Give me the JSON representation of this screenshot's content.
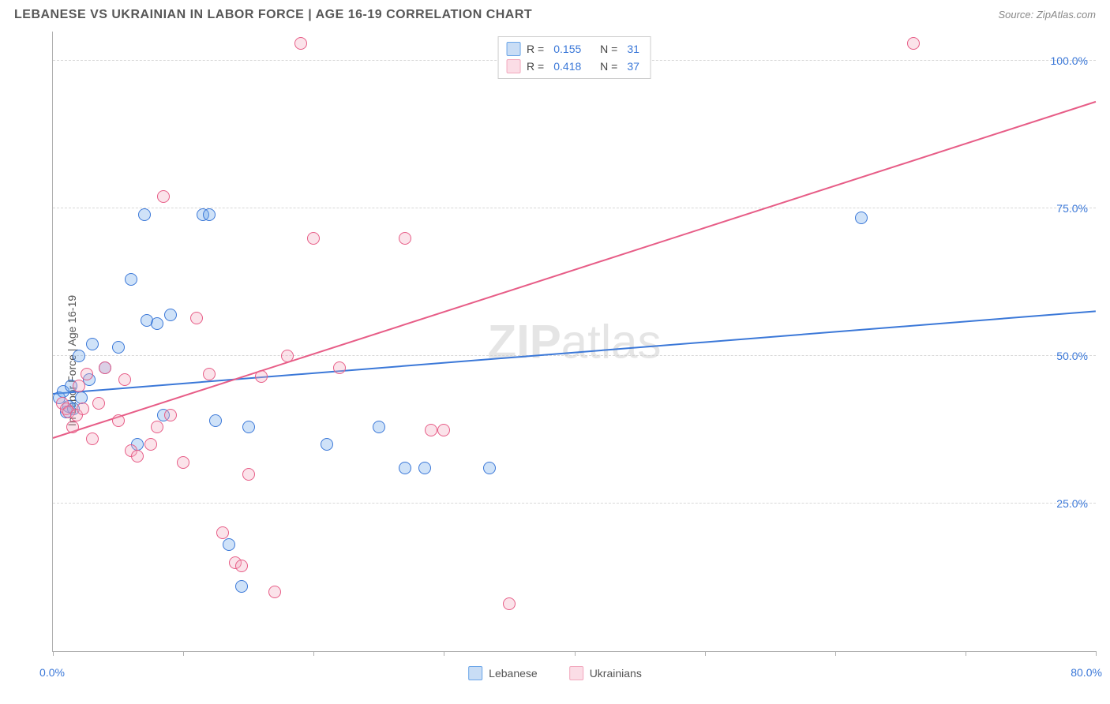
{
  "header": {
    "title": "LEBANESE VS UKRAINIAN IN LABOR FORCE | AGE 16-19 CORRELATION CHART",
    "source": "Source: ZipAtlas.com"
  },
  "chart": {
    "type": "scatter",
    "ylabel": "In Labor Force | Age 16-19",
    "xlim": [
      0,
      80
    ],
    "ylim": [
      0,
      105
    ],
    "xtick_positions": [
      0,
      10,
      20,
      30,
      40,
      50,
      60,
      70,
      80
    ],
    "xlabel_min": "0.0%",
    "xlabel_max": "80.0%",
    "ytick_labels": [
      "25.0%",
      "50.0%",
      "75.0%",
      "100.0%"
    ],
    "ytick_positions": [
      25,
      50,
      75,
      100
    ],
    "grid_color": "#d8d8d8",
    "axis_color": "#b0b0b0",
    "background_color": "#ffffff",
    "marker_radius": 8,
    "marker_border_width": 1.5,
    "marker_fill_opacity": 0.32,
    "watermark": "ZIPatlas",
    "series": [
      {
        "name": "Lebanese",
        "color": "#6aa5e8",
        "border_color": "#3b78d8",
        "r": "0.155",
        "n": "31",
        "trend": {
          "x0": 0,
          "y0": 43.5,
          "x1": 80,
          "y1": 57.5,
          "width": 2
        },
        "points": [
          [
            0.5,
            43
          ],
          [
            0.8,
            44
          ],
          [
            1.0,
            40.5
          ],
          [
            1.2,
            41.5
          ],
          [
            1.4,
            45
          ],
          [
            1.6,
            41
          ],
          [
            2.0,
            50
          ],
          [
            2.2,
            43
          ],
          [
            2.8,
            46
          ],
          [
            3.0,
            52
          ],
          [
            4.0,
            48
          ],
          [
            5.0,
            51.5
          ],
          [
            6.0,
            63
          ],
          [
            6.5,
            35
          ],
          [
            7.0,
            74
          ],
          [
            7.2,
            56
          ],
          [
            8.0,
            55.5
          ],
          [
            9.0,
            57
          ],
          [
            11.5,
            74
          ],
          [
            12.0,
            74
          ],
          [
            12.5,
            39
          ],
          [
            13.5,
            18
          ],
          [
            14.5,
            11
          ],
          [
            15.0,
            38
          ],
          [
            21.0,
            35
          ],
          [
            25.0,
            38
          ],
          [
            27.0,
            31
          ],
          [
            28.5,
            31
          ],
          [
            33.5,
            31
          ],
          [
            62.0,
            73.5
          ],
          [
            8.5,
            40
          ]
        ]
      },
      {
        "name": "Ukrainians",
        "color": "#f2a8bd",
        "border_color": "#e75d87",
        "r": "0.418",
        "n": "37",
        "trend": {
          "x0": 0,
          "y0": 36,
          "x1": 80,
          "y1": 93,
          "width": 2
        },
        "points": [
          [
            0.7,
            42
          ],
          [
            1.0,
            41
          ],
          [
            1.2,
            40.5
          ],
          [
            1.5,
            38
          ],
          [
            1.8,
            40
          ],
          [
            2.0,
            45
          ],
          [
            2.3,
            41
          ],
          [
            2.6,
            47
          ],
          [
            3.0,
            36
          ],
          [
            3.5,
            42
          ],
          [
            4.0,
            48
          ],
          [
            5.0,
            39
          ],
          [
            6.0,
            34
          ],
          [
            6.5,
            33
          ],
          [
            8.0,
            38
          ],
          [
            8.5,
            77
          ],
          [
            9.0,
            40
          ],
          [
            10.0,
            32
          ],
          [
            11.0,
            56.5
          ],
          [
            12.0,
            47
          ],
          [
            13.0,
            20
          ],
          [
            14.0,
            15
          ],
          [
            14.5,
            14.5
          ],
          [
            15.0,
            30
          ],
          [
            16.0,
            46.5
          ],
          [
            17.0,
            10
          ],
          [
            18.0,
            50
          ],
          [
            19.0,
            103
          ],
          [
            20.0,
            70
          ],
          [
            22.0,
            48
          ],
          [
            27.0,
            70
          ],
          [
            29.0,
            37.5
          ],
          [
            30.0,
            37.5
          ],
          [
            35.0,
            8
          ],
          [
            66.0,
            103
          ],
          [
            5.5,
            46
          ],
          [
            7.5,
            35
          ]
        ]
      }
    ],
    "legend_bottom": [
      {
        "label": "Lebanese",
        "fill": "#c9ddf5",
        "border": "#6aa5e8"
      },
      {
        "label": "Ukrainians",
        "fill": "#fbdde6",
        "border": "#f2a8bd"
      }
    ],
    "legend_top": {
      "r_label": "R =",
      "n_label": "N ="
    }
  }
}
